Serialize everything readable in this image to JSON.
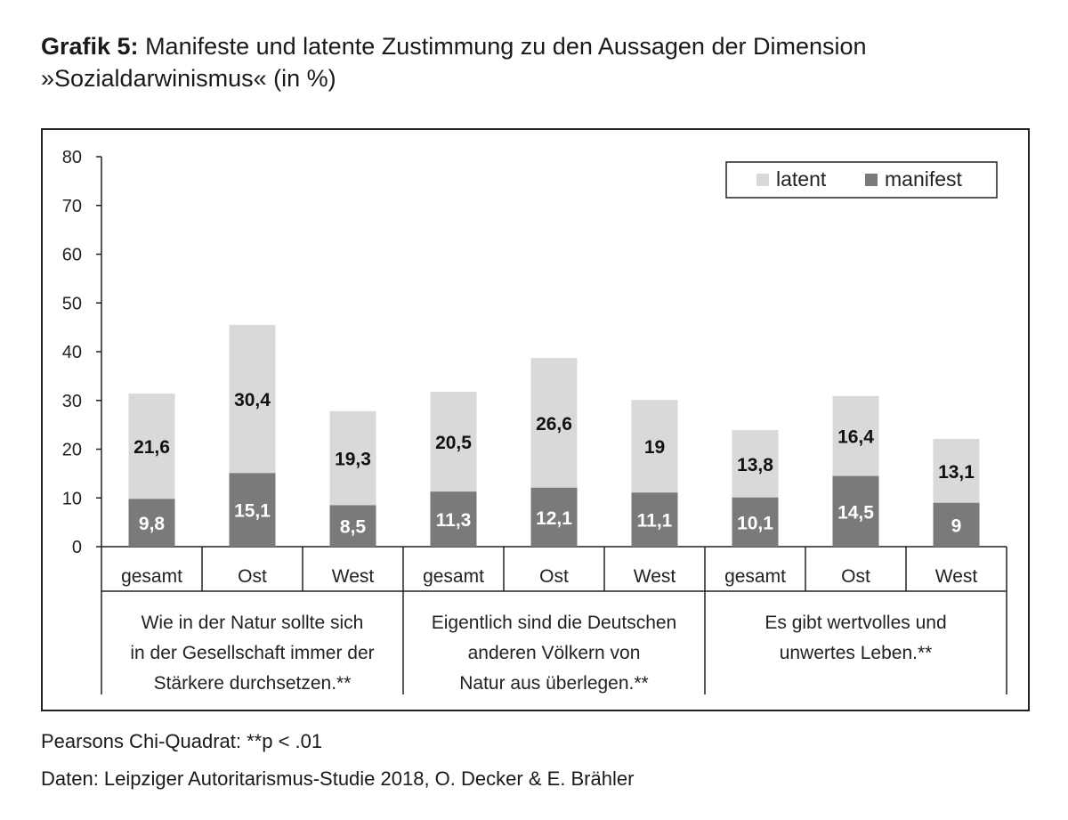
{
  "title": {
    "bold": "Grafik 5:",
    "line1": "Manifeste und latente Zustimmung zu den Aussagen der Dimension",
    "line2": "»Sozialdarwinismus« (in %)"
  },
  "footnotes": {
    "stat": "Pearsons Chi-Quadrat: **p < .01",
    "source": "Daten: Leipziger Autoritarismus-Studie 2018, O. Decker & E. Brähler"
  },
  "chart_data": {
    "type": "bar",
    "stacked": true,
    "ylim": [
      0,
      80
    ],
    "yticks": [
      0,
      10,
      20,
      30,
      40,
      50,
      60,
      70,
      80
    ],
    "grid": false,
    "legend_position": "top-right",
    "categories": [
      "gesamt",
      "Ost",
      "West",
      "gesamt",
      "Ost",
      "West",
      "gesamt",
      "Ost",
      "West"
    ],
    "groups": [
      {
        "lines": [
          "Wie in der Natur sollte sich",
          "in der Gesellschaft immer der",
          "Stärkere durchsetzen.**"
        ]
      },
      {
        "lines": [
          "Eigentlich sind die Deutschen",
          "anderen Völkern von",
          "Natur aus überlegen.**"
        ]
      },
      {
        "lines": [
          "Es gibt wertvolles und",
          "unwertes Leben.**"
        ]
      }
    ],
    "series": [
      {
        "name": "manifest",
        "color": "#7a7a7a",
        "values": [
          9.8,
          15.1,
          8.5,
          11.3,
          12.1,
          11.1,
          10.1,
          14.5,
          9
        ],
        "labels": [
          "9,8",
          "15,1",
          "8,5",
          "11,3",
          "12,1",
          "11,1",
          "10,1",
          "14,5",
          "9"
        ]
      },
      {
        "name": "latent",
        "color": "#d9d9d9",
        "values": [
          21.6,
          30.4,
          19.3,
          20.5,
          26.6,
          19,
          13.8,
          16.4,
          13.1
        ],
        "labels": [
          "21,6",
          "30,4",
          "19,3",
          "20,5",
          "26,6",
          "19",
          "13,8",
          "16,4",
          "13,1"
        ]
      }
    ],
    "legend": [
      "latent",
      "manifest"
    ]
  }
}
